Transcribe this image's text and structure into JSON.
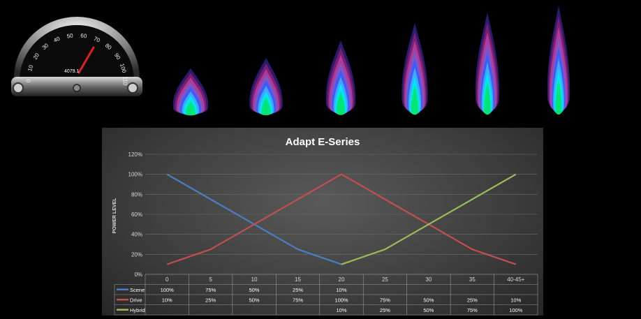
{
  "speedometer": {
    "scale_numbers": [
      "0",
      "10",
      "20",
      "30",
      "40",
      "50",
      "60",
      "70",
      "80",
      "90",
      "100",
      "110"
    ],
    "odometer": "4079.1"
  },
  "flames": {
    "count": 6,
    "levels": [
      0.1,
      0.25,
      0.5,
      0.75,
      0.9,
      1.0
    ],
    "colors": [
      "#00e676",
      "#00e5ff",
      "#40a8ff",
      "#3d5afe",
      "#7e57c2",
      "#b03a9c",
      "#7a1e70",
      "#2b1a6e"
    ]
  },
  "chart_data": {
    "type": "line",
    "title": "Adapt E-Series",
    "ylabel": "POWER LEVEL",
    "xlabel": "",
    "categories": [
      "0",
      "5",
      "10",
      "15",
      "20",
      "25",
      "30",
      "35",
      "40-45+"
    ],
    "ylim": [
      0,
      120
    ],
    "yticks": [
      "0%",
      "20%",
      "40%",
      "60%",
      "80%",
      "100%",
      "120%"
    ],
    "grid": true,
    "legend": "data-table",
    "series": [
      {
        "name": "Scene",
        "color": "#4a7fc1",
        "values": [
          100,
          75,
          50,
          25,
          10,
          null,
          null,
          null,
          null
        ],
        "labels": [
          "100%",
          "75%",
          "50%",
          "25%",
          "10%",
          "",
          "",
          "",
          ""
        ]
      },
      {
        "name": "Drive",
        "color": "#c0504d",
        "values": [
          10,
          25,
          50,
          75,
          100,
          75,
          50,
          25,
          10
        ],
        "labels": [
          "10%",
          "25%",
          "50%",
          "75%",
          "100%",
          "75%",
          "50%",
          "25%",
          "10%"
        ]
      },
      {
        "name": "Hybrid",
        "color": "#9bbb59",
        "values": [
          null,
          null,
          null,
          null,
          10,
          25,
          50,
          75,
          100
        ],
        "labels": [
          "",
          "",
          "",
          "",
          "10%",
          "25%",
          "50%",
          "75%",
          "100%"
        ]
      }
    ]
  }
}
